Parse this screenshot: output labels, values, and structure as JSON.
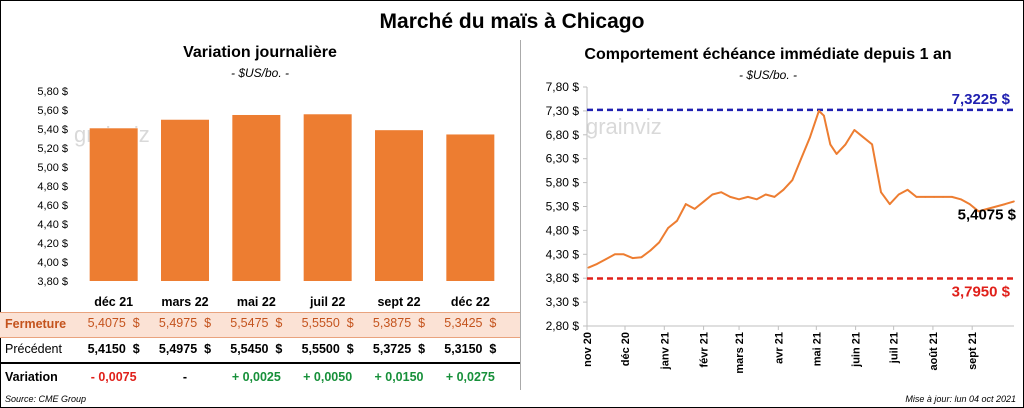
{
  "title": "Marché du maïs à Chicago",
  "left": {
    "subtitle": "Variation  journalière",
    "unit": "- $US/bo. -",
    "watermark": "grainviz"
  },
  "right": {
    "subtitle": "Comportement  échéance immédiate depuis 1 an",
    "unit": "- $US/bo. -",
    "watermark": "grainviz",
    "high_label": "7,3225 $",
    "low_label": "3,7950 $",
    "last_label": "5,4075 $"
  },
  "table": {
    "rows": [
      {
        "label": "Fermeture",
        "values": [
          "5,4075  $",
          "5,4975  $",
          "5,5475  $",
          "5,5550  $",
          "5,3875  $",
          "5,3425  $"
        ]
      },
      {
        "label": "Précédent",
        "values": [
          "5,4150  $",
          "5,4975  $",
          "5,5450  $",
          "5,5500  $",
          "5,3725  $",
          "5,3150  $"
        ]
      },
      {
        "label": "Variation",
        "values": [
          "- 0,0075",
          "-",
          "+ 0,0025",
          "+ 0,0050",
          "+ 0,0150",
          "+ 0,0275"
        ]
      }
    ],
    "variation_colors": [
      "#e0201a",
      "#000000",
      "#17903a",
      "#17903a",
      "#17903a",
      "#17903a"
    ]
  },
  "footer": {
    "source": "Source: CME Group",
    "updated": "Mise à jour: lun 04 oct 2021"
  },
  "colors": {
    "bar": "#ed7d31",
    "line": "#ed7d31",
    "high_line": "#2020b0",
    "low_line": "#e0201a",
    "close_text": "#c4531d"
  },
  "chart_data": [
    {
      "type": "bar",
      "title": "Variation  journalière",
      "ylabel": "- $US/bo. -",
      "categories": [
        "déc 21",
        "mars 22",
        "mai 22",
        "juil 22",
        "sept 22",
        "déc 22"
      ],
      "values": [
        5.4075,
        5.4975,
        5.5475,
        5.555,
        5.3875,
        5.3425
      ],
      "ylim": [
        3.8,
        5.8
      ],
      "yticks": [
        3.8,
        4.0,
        4.2,
        4.4,
        4.6,
        4.8,
        5.0,
        5.2,
        5.4,
        5.6,
        5.8
      ],
      "ytick_labels": [
        "3,80 $",
        "4,00 $",
        "4,20 $",
        "4,40 $",
        "4,60 $",
        "4,80 $",
        "5,00 $",
        "5,20 $",
        "5,40 $",
        "5,60 $",
        "5,80 $"
      ],
      "grid": false
    },
    {
      "type": "line",
      "title": "Comportement  échéance immédiate depuis 1 an",
      "ylabel": "- $US/bo. -",
      "ylim": [
        2.8,
        7.8
      ],
      "yticks": [
        2.8,
        3.3,
        3.8,
        4.3,
        4.8,
        5.3,
        5.8,
        6.3,
        6.8,
        7.3,
        7.8
      ],
      "ytick_labels": [
        "2,80 $",
        "3,30 $",
        "3,80 $",
        "4,30 $",
        "4,80 $",
        "5,30 $",
        "5,80 $",
        "6,30 $",
        "6,80 $",
        "7,30 $",
        "7,80 $"
      ],
      "xlim": [
        "2020-11-01",
        "2021-10-04"
      ],
      "xticks": [
        "2020-11-01",
        "2020-12-01",
        "2021-01-01",
        "2021-02-01",
        "2021-03-01",
        "2021-04-01",
        "2021-05-01",
        "2021-06-01",
        "2021-07-01",
        "2021-08-01",
        "2021-09-01"
      ],
      "xtick_labels": [
        "nov 20",
        "déc 20",
        "janv 21",
        "févr 21",
        "mars 21",
        "avr 21",
        "mai 21",
        "juin 21",
        "juil 21",
        "août 21",
        "sept 21"
      ],
      "series": [
        {
          "x": [
            "2020-11-02",
            "2020-11-09",
            "2020-11-16",
            "2020-11-23",
            "2020-11-30",
            "2020-12-07",
            "2020-12-14",
            "2020-12-21",
            "2020-12-28",
            "2021-01-04",
            "2021-01-11",
            "2021-01-18",
            "2021-01-25",
            "2021-02-01",
            "2021-02-08",
            "2021-02-15",
            "2021-02-22",
            "2021-03-01",
            "2021-03-08",
            "2021-03-15",
            "2021-03-22",
            "2021-03-29",
            "2021-04-05",
            "2021-04-12",
            "2021-04-19",
            "2021-04-26",
            "2021-05-03",
            "2021-05-07",
            "2021-05-12",
            "2021-05-17",
            "2021-05-24",
            "2021-05-31",
            "2021-06-07",
            "2021-06-14",
            "2021-06-21",
            "2021-06-28",
            "2021-07-05",
            "2021-07-12",
            "2021-07-19",
            "2021-07-26",
            "2021-08-02",
            "2021-08-09",
            "2021-08-16",
            "2021-08-23",
            "2021-08-30",
            "2021-09-06",
            "2021-09-13",
            "2021-09-20",
            "2021-09-27",
            "2021-10-04"
          ],
          "y": [
            4.02,
            4.1,
            4.2,
            4.3,
            4.3,
            4.22,
            4.24,
            4.38,
            4.55,
            4.85,
            5.0,
            5.35,
            5.25,
            5.4,
            5.55,
            5.6,
            5.5,
            5.45,
            5.5,
            5.45,
            5.55,
            5.5,
            5.65,
            5.85,
            6.3,
            6.75,
            7.3,
            7.2,
            6.6,
            6.4,
            6.6,
            6.9,
            6.75,
            6.6,
            5.6,
            5.35,
            5.55,
            5.65,
            5.5,
            5.5,
            5.5,
            5.5,
            5.5,
            5.45,
            5.35,
            5.2,
            5.25,
            5.3,
            5.35,
            5.4075
          ]
        }
      ],
      "reference_lines": [
        {
          "value": 7.3225,
          "label": "7,3225 $"
        },
        {
          "value": 3.795,
          "label": "3,7950 $"
        }
      ],
      "last_value": 5.4075,
      "grid": false
    }
  ]
}
